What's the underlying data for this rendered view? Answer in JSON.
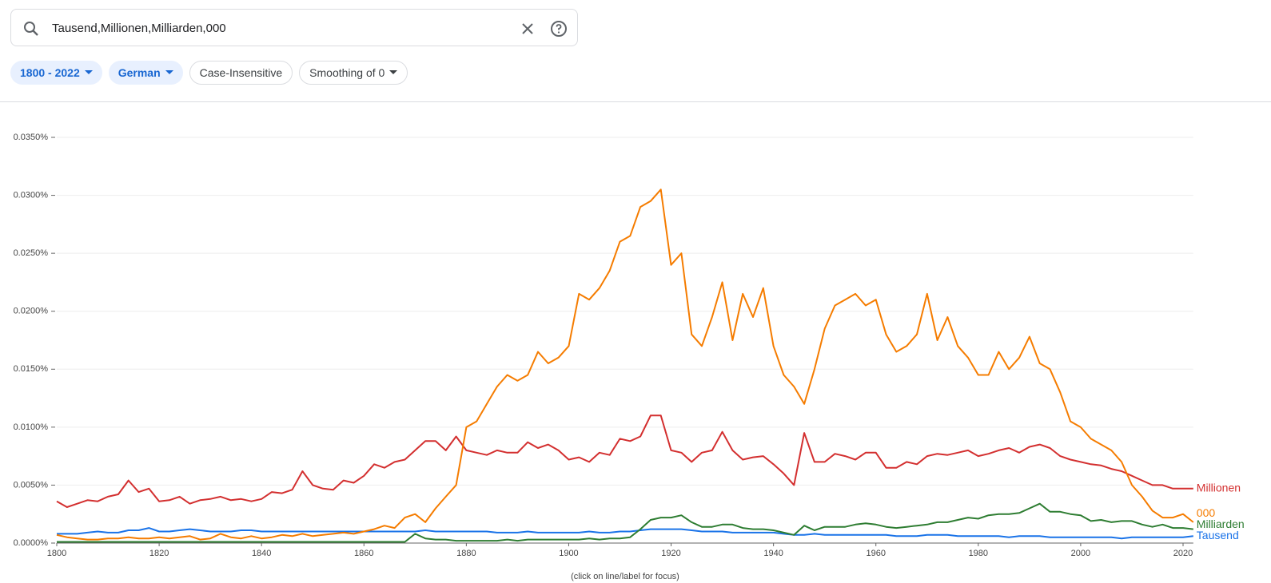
{
  "search": {
    "query": "Tausend,Millionen,Milliarden,000"
  },
  "chips": [
    "1800 - 2022",
    "German",
    "Case-Insensitive",
    "Smoothing of 0"
  ],
  "note": "(click on line/label for focus)",
  "chart_data": {
    "type": "line",
    "xlim": [
      1800,
      2022
    ],
    "ylim": [
      0,
      0.035
    ],
    "xticks": [
      1800,
      1820,
      1840,
      1860,
      1880,
      1900,
      1920,
      1940,
      1960,
      1980,
      2000,
      2020
    ],
    "yticks": [
      {
        "value": 0,
        "label": "0.0000%"
      },
      {
        "value": 0.005,
        "label": "0.0050%"
      },
      {
        "value": 0.01,
        "label": "0.0100%"
      },
      {
        "value": 0.015,
        "label": "0.0150%"
      },
      {
        "value": 0.02,
        "label": "0.0200%"
      },
      {
        "value": 0.025,
        "label": "0.0250%"
      },
      {
        "value": 0.03,
        "label": "0.0300%"
      },
      {
        "value": 0.035,
        "label": "0.0350%"
      }
    ],
    "grid": true,
    "x": [
      1800,
      1802,
      1804,
      1806,
      1808,
      1810,
      1812,
      1814,
      1816,
      1818,
      1820,
      1822,
      1824,
      1826,
      1828,
      1830,
      1832,
      1834,
      1836,
      1838,
      1840,
      1842,
      1844,
      1846,
      1848,
      1850,
      1852,
      1854,
      1856,
      1858,
      1860,
      1862,
      1864,
      1866,
      1868,
      1870,
      1872,
      1874,
      1876,
      1878,
      1880,
      1882,
      1884,
      1886,
      1888,
      1890,
      1892,
      1894,
      1896,
      1898,
      1900,
      1902,
      1904,
      1906,
      1908,
      1910,
      1912,
      1914,
      1916,
      1918,
      1920,
      1922,
      1924,
      1926,
      1928,
      1930,
      1932,
      1934,
      1936,
      1938,
      1940,
      1942,
      1944,
      1946,
      1948,
      1950,
      1952,
      1954,
      1956,
      1958,
      1960,
      1962,
      1964,
      1966,
      1968,
      1970,
      1972,
      1974,
      1976,
      1978,
      1980,
      1982,
      1984,
      1986,
      1988,
      1990,
      1992,
      1994,
      1996,
      1998,
      2000,
      2002,
      2004,
      2006,
      2008,
      2010,
      2012,
      2014,
      2016,
      2018,
      2020,
      2022
    ],
    "series": [
      {
        "name": "Tausend",
        "color": "#1a73e8",
        "values": [
          0.0008,
          0.0008,
          0.0008,
          0.0009,
          0.001,
          0.0009,
          0.0009,
          0.0011,
          0.0011,
          0.0013,
          0.001,
          0.001,
          0.0011,
          0.0012,
          0.0011,
          0.001,
          0.001,
          0.001,
          0.0011,
          0.0011,
          0.001,
          0.001,
          0.001,
          0.001,
          0.001,
          0.001,
          0.001,
          0.001,
          0.001,
          0.001,
          0.001,
          0.001,
          0.001,
          0.001,
          0.001,
          0.001,
          0.0011,
          0.001,
          0.001,
          0.001,
          0.001,
          0.001,
          0.001,
          0.0009,
          0.0009,
          0.0009,
          0.001,
          0.0009,
          0.0009,
          0.0009,
          0.0009,
          0.0009,
          0.001,
          0.0009,
          0.0009,
          0.001,
          0.001,
          0.0011,
          0.0012,
          0.0012,
          0.0012,
          0.0012,
          0.0011,
          0.001,
          0.001,
          0.001,
          0.0009,
          0.0009,
          0.0009,
          0.0009,
          0.0009,
          0.0008,
          0.0007,
          0.0007,
          0.0008,
          0.0007,
          0.0007,
          0.0007,
          0.0007,
          0.0007,
          0.0007,
          0.0007,
          0.0006,
          0.0006,
          0.0006,
          0.0007,
          0.0007,
          0.0007,
          0.0006,
          0.0006,
          0.0006,
          0.0006,
          0.0006,
          0.0005,
          0.0006,
          0.0006,
          0.0006,
          0.0005,
          0.0005,
          0.0005,
          0.0005,
          0.0005,
          0.0005,
          0.0005,
          0.0004,
          0.0005,
          0.0005,
          0.0005,
          0.0005,
          0.0005,
          0.0005,
          0.0006
        ]
      },
      {
        "name": "Millionen",
        "color": "#d32f2f",
        "values": [
          0.0036,
          0.0031,
          0.0034,
          0.0037,
          0.0036,
          0.004,
          0.0042,
          0.0054,
          0.0044,
          0.0047,
          0.0036,
          0.0037,
          0.004,
          0.0034,
          0.0037,
          0.0038,
          0.004,
          0.0037,
          0.0038,
          0.0036,
          0.0038,
          0.0044,
          0.0043,
          0.0046,
          0.0062,
          0.005,
          0.0047,
          0.0046,
          0.0054,
          0.0052,
          0.0058,
          0.0068,
          0.0065,
          0.007,
          0.0072,
          0.008,
          0.0088,
          0.0088,
          0.008,
          0.0092,
          0.008,
          0.0078,
          0.0076,
          0.008,
          0.0078,
          0.0078,
          0.0087,
          0.0082,
          0.0085,
          0.008,
          0.0072,
          0.0074,
          0.007,
          0.0078,
          0.0076,
          0.009,
          0.0088,
          0.0092,
          0.011,
          0.011,
          0.008,
          0.0078,
          0.007,
          0.0078,
          0.008,
          0.0096,
          0.008,
          0.0072,
          0.0074,
          0.0075,
          0.0068,
          0.006,
          0.005,
          0.0095,
          0.007,
          0.007,
          0.0077,
          0.0075,
          0.0072,
          0.0078,
          0.0078,
          0.0065,
          0.0065,
          0.007,
          0.0068,
          0.0075,
          0.0077,
          0.0076,
          0.0078,
          0.008,
          0.0075,
          0.0077,
          0.008,
          0.0082,
          0.0078,
          0.0083,
          0.0085,
          0.0082,
          0.0075,
          0.0072,
          0.007,
          0.0068,
          0.0067,
          0.0064,
          0.0062,
          0.0058,
          0.0054,
          0.005,
          0.005,
          0.0047,
          0.0047,
          0.0047
        ]
      },
      {
        "name": "Milliarden",
        "color": "#2e7d32",
        "values": [
          0.0001,
          0.0001,
          0.0001,
          0.0001,
          0.0001,
          0.0001,
          0.0001,
          0.0001,
          0.0001,
          0.0001,
          0.0001,
          0.0001,
          0.0001,
          0.0001,
          0.0001,
          0.0001,
          0.0001,
          0.0001,
          0.0001,
          0.0001,
          0.0001,
          0.0001,
          0.0001,
          0.0001,
          0.0001,
          0.0001,
          0.0001,
          0.0001,
          0.0001,
          0.0001,
          0.0001,
          0.0001,
          0.0001,
          0.0001,
          0.0001,
          0.0008,
          0.0004,
          0.0003,
          0.0003,
          0.0002,
          0.0002,
          0.0002,
          0.0002,
          0.0002,
          0.0003,
          0.0002,
          0.0003,
          0.0003,
          0.0003,
          0.0003,
          0.0003,
          0.0003,
          0.0004,
          0.0003,
          0.0004,
          0.0004,
          0.0005,
          0.0012,
          0.002,
          0.0022,
          0.0022,
          0.0024,
          0.0018,
          0.0014,
          0.0014,
          0.0016,
          0.0016,
          0.0013,
          0.0012,
          0.0012,
          0.0011,
          0.0009,
          0.0007,
          0.0015,
          0.0011,
          0.0014,
          0.0014,
          0.0014,
          0.0016,
          0.0017,
          0.0016,
          0.0014,
          0.0013,
          0.0014,
          0.0015,
          0.0016,
          0.0018,
          0.0018,
          0.002,
          0.0022,
          0.0021,
          0.0024,
          0.0025,
          0.0025,
          0.0026,
          0.003,
          0.0034,
          0.0027,
          0.0027,
          0.0025,
          0.0024,
          0.0019,
          0.002,
          0.0018,
          0.0019,
          0.0019,
          0.0016,
          0.0014,
          0.0016,
          0.0013,
          0.0013,
          0.0012
        ]
      },
      {
        "name": "000",
        "color": "#f57c00",
        "values": [
          0.0007,
          0.0005,
          0.0004,
          0.0003,
          0.0003,
          0.0004,
          0.0004,
          0.0005,
          0.0004,
          0.0004,
          0.0005,
          0.0004,
          0.0005,
          0.0006,
          0.0003,
          0.0004,
          0.0008,
          0.0005,
          0.0004,
          0.0006,
          0.0004,
          0.0005,
          0.0007,
          0.0006,
          0.0008,
          0.0006,
          0.0007,
          0.0008,
          0.0009,
          0.0008,
          0.001,
          0.0012,
          0.0015,
          0.0013,
          0.0022,
          0.0025,
          0.0018,
          0.003,
          0.004,
          0.005,
          0.01,
          0.0105,
          0.012,
          0.0135,
          0.0145,
          0.014,
          0.0145,
          0.0165,
          0.0155,
          0.016,
          0.017,
          0.0215,
          0.021,
          0.022,
          0.0235,
          0.026,
          0.0265,
          0.029,
          0.0295,
          0.0305,
          0.024,
          0.025,
          0.018,
          0.017,
          0.0195,
          0.0225,
          0.0175,
          0.0215,
          0.0195,
          0.022,
          0.017,
          0.0145,
          0.0135,
          0.012,
          0.015,
          0.0185,
          0.0205,
          0.021,
          0.0215,
          0.0205,
          0.021,
          0.018,
          0.0165,
          0.017,
          0.018,
          0.0215,
          0.0175,
          0.0195,
          0.017,
          0.016,
          0.0145,
          0.0145,
          0.0165,
          0.015,
          0.016,
          0.0178,
          0.0155,
          0.015,
          0.013,
          0.0105,
          0.01,
          0.009,
          0.0085,
          0.008,
          0.007,
          0.005,
          0.004,
          0.0028,
          0.0022,
          0.0022,
          0.0025,
          0.0018
        ]
      }
    ]
  }
}
